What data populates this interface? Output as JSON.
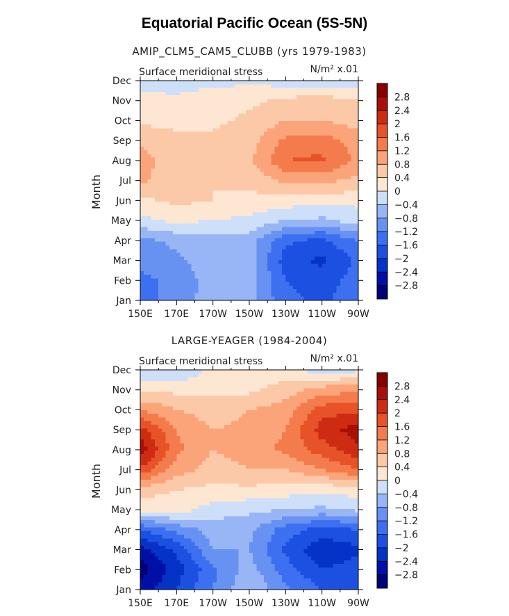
{
  "page": {
    "title": "Equatorial Pacific Ocean (5S-5N)"
  },
  "colors": {
    "levels": [
      -2.8,
      -2.4,
      -2.0,
      -1.6,
      -1.2,
      -0.8,
      -0.4,
      0,
      0.4,
      0.8,
      1.2,
      1.6,
      2.0,
      2.4,
      2.8
    ],
    "fills": [
      "#00007a",
      "#0010a6",
      "#0532c7",
      "#1c50e0",
      "#3d70f0",
      "#6892f2",
      "#98b6f5",
      "#cddff9",
      "#fde6d2",
      "#fcc9a8",
      "#fba47a",
      "#f47b4b",
      "#e85228",
      "#cd2c12",
      "#a80f06",
      "#870000"
    ]
  },
  "chart_data": [
    {
      "type": "heatmap",
      "title": "AMIP_CLM5_CAM5_CLUBB (yrs 1979-1983)",
      "left_label": "Surface meridional stress",
      "units": "N/m² x.01",
      "ylabel": "Month",
      "x": [
        150,
        170,
        190,
        210,
        230,
        250,
        270
      ],
      "xtick_labels": [
        "150E",
        "170E",
        "170W",
        "150W",
        "130W",
        "110W",
        "90W"
      ],
      "xlim": [
        150,
        270
      ],
      "y": [
        "Jan",
        "Feb",
        "Mar",
        "Apr",
        "May",
        "Jun",
        "Jul",
        "Aug",
        "Sep",
        "Oct",
        "Nov",
        "Dec"
      ],
      "z": [
        [
          -1.4,
          -1.0,
          -0.6,
          -0.6,
          -1.5,
          -1.7,
          -1.3
        ],
        [
          -1.3,
          -1.1,
          -0.6,
          -0.6,
          -1.6,
          -1.8,
          -1.4
        ],
        [
          -1.1,
          -0.9,
          -0.5,
          -0.6,
          -1.8,
          -2.1,
          -1.5
        ],
        [
          -0.9,
          -0.7,
          -0.5,
          -0.6,
          -1.5,
          -1.7,
          -1.2
        ],
        [
          -0.1,
          0.1,
          0.0,
          -0.1,
          -0.4,
          -0.5,
          -0.2
        ],
        [
          0.3,
          0.5,
          0.4,
          0.3,
          0.2,
          0.2,
          0.1
        ],
        [
          0.9,
          0.5,
          0.4,
          0.5,
          0.9,
          0.9,
          0.7
        ],
        [
          1.0,
          0.5,
          0.5,
          0.7,
          1.6,
          1.7,
          1.1
        ],
        [
          0.7,
          0.5,
          0.5,
          0.6,
          1.3,
          1.4,
          1.0
        ],
        [
          0.3,
          0.3,
          0.3,
          0.5,
          0.8,
          0.8,
          0.6
        ],
        [
          0.2,
          0.1,
          0.2,
          0.3,
          0.5,
          0.6,
          0.4
        ],
        [
          -0.3,
          -0.2,
          -0.1,
          -0.1,
          -0.2,
          -0.3,
          -0.3
        ]
      ],
      "colorbar": {
        "labels": [
          "2.8",
          "2.4",
          "2",
          "1.6",
          "1.2",
          "0.8",
          "0.4",
          "0",
          "−0.4",
          "−0.8",
          "−1.2",
          "−1.6",
          "−2",
          "−2.4",
          "−2.8"
        ]
      }
    },
    {
      "type": "heatmap",
      "title": "LARGE-YEAGER (1984-2004)",
      "left_label": "Surface meridional stress",
      "units": "N/m² x.01",
      "ylabel": "Month",
      "x": [
        150,
        170,
        190,
        210,
        230,
        250,
        270
      ],
      "xtick_labels": [
        "150E",
        "170E",
        "170W",
        "150W",
        "130W",
        "110W",
        "90W"
      ],
      "xlim": [
        150,
        270
      ],
      "y": [
        "Jan",
        "Feb",
        "Mar",
        "Apr",
        "May",
        "Jun",
        "Jul",
        "Aug",
        "Sep",
        "Oct",
        "Nov",
        "Dec"
      ],
      "z": [
        [
          -2.6,
          -2.0,
          -1.2,
          -0.4,
          -1.1,
          -1.6,
          -1.7
        ],
        [
          -3.0,
          -2.2,
          -1.3,
          -0.6,
          -1.4,
          -2.0,
          -1.8
        ],
        [
          -2.6,
          -1.9,
          -0.8,
          -0.8,
          -1.7,
          -2.3,
          -2.1
        ],
        [
          -1.6,
          -1.1,
          -0.6,
          -0.7,
          -1.4,
          -1.8,
          -1.6
        ],
        [
          0.1,
          0.2,
          -0.2,
          -0.3,
          -0.4,
          -0.5,
          -0.3
        ],
        [
          0.6,
          0.4,
          0.3,
          0.3,
          0.2,
          0.1,
          0.2
        ],
        [
          1.9,
          1.0,
          0.6,
          0.8,
          0.8,
          1.2,
          1.6
        ],
        [
          2.7,
          1.3,
          0.8,
          1.0,
          1.3,
          1.8,
          2.3
        ],
        [
          2.2,
          1.2,
          0.8,
          0.9,
          1.2,
          2.2,
          2.6
        ],
        [
          1.2,
          0.8,
          0.6,
          0.8,
          1.0,
          1.8,
          1.9
        ],
        [
          0.3,
          0.3,
          0.3,
          0.3,
          0.6,
          1.0,
          1.1
        ],
        [
          -0.3,
          -0.4,
          0.1,
          0.3,
          0.1,
          -0.2,
          -0.1
        ]
      ],
      "colorbar": {
        "labels": [
          "2.8",
          "2.4",
          "2",
          "1.6",
          "1.2",
          "0.8",
          "0.4",
          "0",
          "−0.4",
          "−0.8",
          "−1.2",
          "−1.6",
          "−2",
          "−2.4",
          "−2.8"
        ]
      }
    }
  ]
}
